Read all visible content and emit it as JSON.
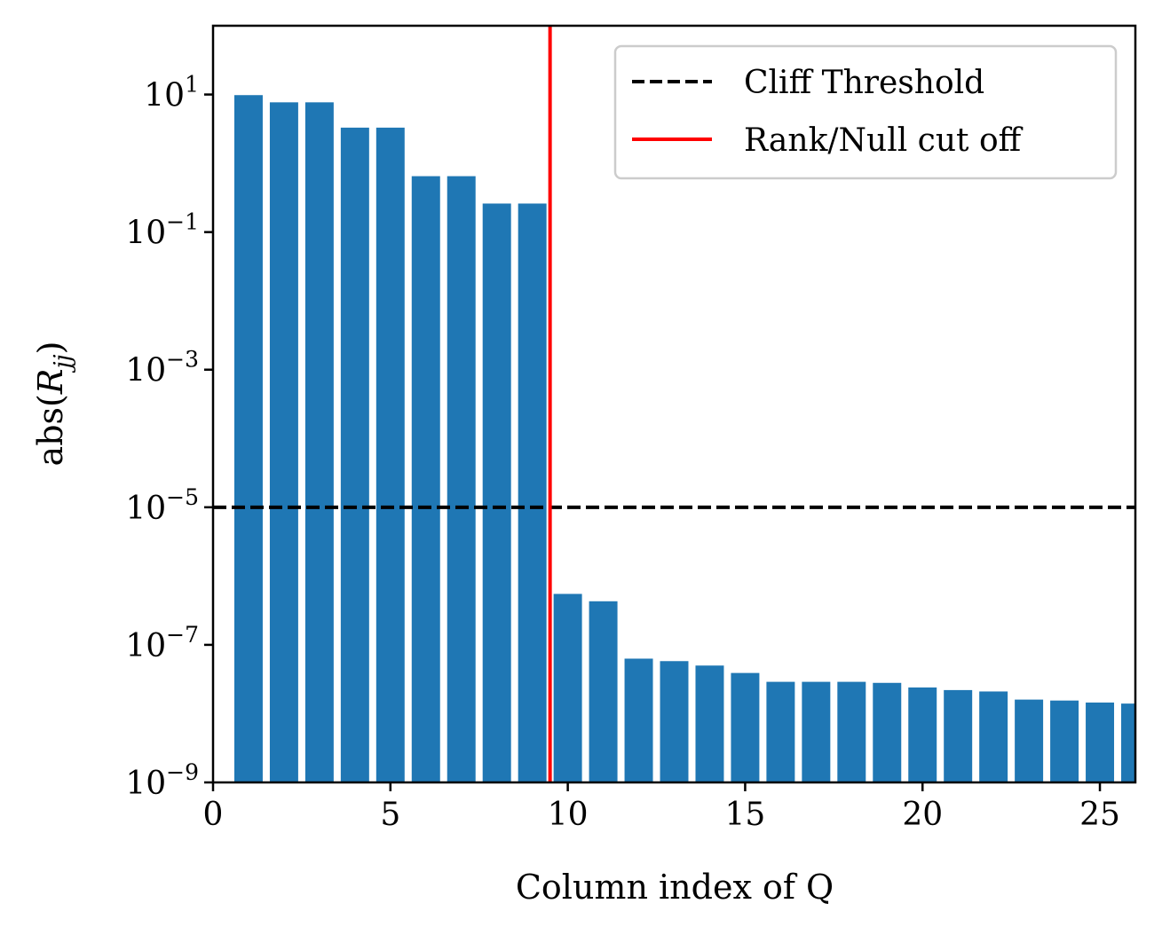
{
  "chart_data": {
    "type": "bar",
    "title": "",
    "xlabel": "Column index of Q",
    "ylabel": {
      "prefix": "abs(",
      "var": "R",
      "sub": "jj",
      "suffix": ")"
    },
    "xlim": [
      0,
      26
    ],
    "ylim_log10": [
      -9,
      2
    ],
    "yscale": "log",
    "x_ticks": [
      0,
      5,
      10,
      15,
      20,
      25
    ],
    "y_ticks": [
      {
        "base": "10",
        "exp": "1",
        "log10": 1
      },
      {
        "base": "10",
        "exp": "−1",
        "log10": -1
      },
      {
        "base": "10",
        "exp": "−3",
        "log10": -3
      },
      {
        "base": "10",
        "exp": "−5",
        "log10": -5
      },
      {
        "base": "10",
        "exp": "−7",
        "log10": -7
      },
      {
        "base": "10",
        "exp": "−9",
        "log10": -9
      }
    ],
    "x": [
      1,
      2,
      3,
      4,
      5,
      6,
      7,
      8,
      9,
      10,
      11,
      12,
      13,
      14,
      15,
      16,
      17,
      18,
      19,
      20,
      21,
      22,
      23,
      24,
      25,
      26
    ],
    "values": [
      9.8,
      7.7,
      7.7,
      3.3,
      3.3,
      0.65,
      0.65,
      0.26,
      0.26,
      5.5e-07,
      4.3e-07,
      6.3e-08,
      5.8e-08,
      5e-08,
      3.9e-08,
      2.9e-08,
      2.9e-08,
      2.9e-08,
      2.8e-08,
      2.4e-08,
      2.2e-08,
      2.1e-08,
      1.6e-08,
      1.55e-08,
      1.45e-08,
      1.4e-08
    ],
    "bar_width": 0.8,
    "bar_color": "#1f77b4",
    "cliff_threshold": {
      "value": 1e-05,
      "label": "Cliff Threshold",
      "color": "#000000",
      "style": "dashed"
    },
    "rank_cutoff": {
      "x": 9.5,
      "label": "Rank/Null cut off",
      "color": "#ff0000",
      "style": "solid"
    },
    "legend_position": "top-right"
  }
}
